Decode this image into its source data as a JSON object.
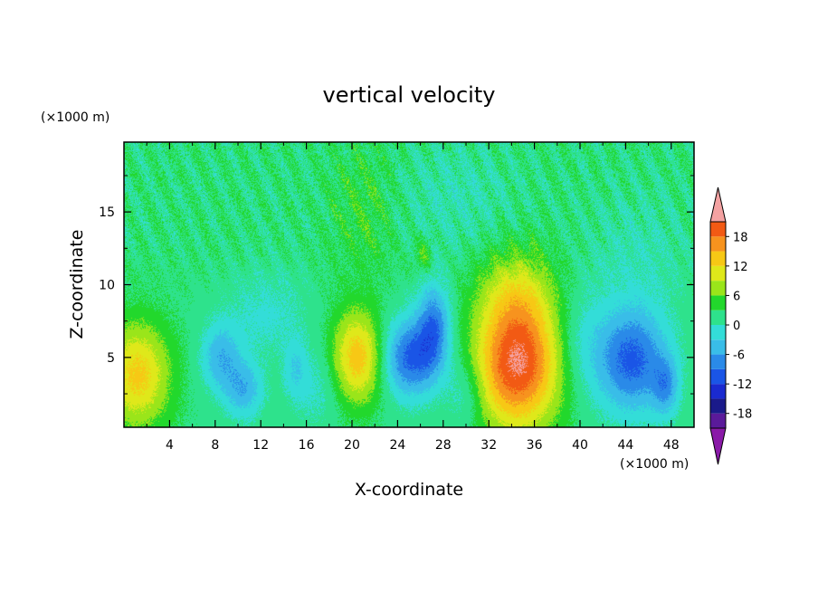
{
  "chart_data": {
    "type": "heatmap",
    "title": "vertical velocity",
    "xlabel": "X-coordinate",
    "ylabel": "Z-coordinate",
    "x_unit": "(×1000 m)",
    "y_unit": "(×1000 m)",
    "xlim": [
      0,
      50
    ],
    "ylim": [
      0.2,
      19.8
    ],
    "x_ticks": [
      4,
      8,
      12,
      16,
      20,
      24,
      28,
      32,
      36,
      40,
      44,
      48
    ],
    "y_ticks": [
      5,
      10,
      15
    ],
    "x_tick_labels": [
      "4",
      "8",
      "12",
      "16",
      "20",
      "24",
      "28",
      "32",
      "36",
      "40",
      "44",
      "48"
    ],
    "y_tick_labels": [
      "5",
      "10",
      "15"
    ],
    "colorbar": {
      "levels": [
        -21,
        -18,
        -15,
        -12,
        -9,
        -6,
        -3,
        0,
        3,
        6,
        9,
        12,
        15,
        18,
        21
      ],
      "tick_values": [
        -18,
        -12,
        -6,
        0,
        6,
        12,
        18
      ],
      "tick_labels": [
        "-18",
        "-12",
        "-6",
        "0",
        "6",
        "12",
        "18"
      ],
      "colors": [
        "#5a1a9a",
        "#1a1a8a",
        "#1a2ad0",
        "#1a55e6",
        "#2a8ae8",
        "#39bde8",
        "#33ddd8",
        "#2ee28c",
        "#22d82c",
        "#9ae51a",
        "#dfe81a",
        "#f7c815",
        "#f7931e",
        "#f25a14",
        "#ee2222",
        "#f4a2a2"
      ],
      "under_color": "#8a1aa8",
      "over_color": "#f4a2a2",
      "extend": "both"
    },
    "features": [
      {
        "x": 1.2,
        "z": 3.8,
        "amp": 11,
        "sx": 2.0,
        "sz": 2.5
      },
      {
        "x": 8.5,
        "z": 5.0,
        "amp": -7,
        "sx": 1.2,
        "sz": 1.6
      },
      {
        "x": 10.5,
        "z": 2.8,
        "amp": -7,
        "sx": 1.2,
        "sz": 1.4
      },
      {
        "x": 15.0,
        "z": 4.2,
        "amp": -4,
        "sx": 0.7,
        "sz": 1.4
      },
      {
        "x": 20.5,
        "z": 5.0,
        "amp": 12,
        "sx": 1.6,
        "sz": 2.2
      },
      {
        "x": 25.2,
        "z": 5.0,
        "amp": -12,
        "sx": 1.8,
        "sz": 1.9
      },
      {
        "x": 27.2,
        "z": 7.3,
        "amp": -9,
        "sx": 1.0,
        "sz": 2.0
      },
      {
        "x": 34.5,
        "z": 4.5,
        "amp": 19,
        "sx": 2.6,
        "sz": 3.1
      },
      {
        "x": 34.5,
        "z": 9.5,
        "amp": 6,
        "sx": 2.3,
        "sz": 2.2
      },
      {
        "x": 44.5,
        "z": 4.8,
        "amp": -12,
        "sx": 2.2,
        "sz": 2.5
      },
      {
        "x": 47.5,
        "z": 3.0,
        "amp": -7,
        "sx": 0.8,
        "sz": 1.4
      },
      {
        "x": 30.0,
        "z": 2.5,
        "amp": -4,
        "sx": 1.2,
        "sz": 1.8
      },
      {
        "x": 21.0,
        "z": 15.0,
        "amp": 2.5,
        "sx": 2.0,
        "sz": 3.5
      },
      {
        "x": 26.3,
        "z": 12.0,
        "amp": 4,
        "sx": 0.5,
        "sz": 0.8
      },
      {
        "x": 29.0,
        "z": 16.0,
        "amp": -2,
        "sx": 3.5,
        "sz": 2.5
      },
      {
        "x": 45.0,
        "z": 12.0,
        "amp": -2,
        "sx": 3.0,
        "sz": 3.0
      },
      {
        "x": 12.5,
        "z": 8.0,
        "amp": -3,
        "sx": 2.5,
        "sz": 2.0
      },
      {
        "x": 40.0,
        "z": 6.0,
        "amp": -3,
        "sx": 1.5,
        "sz": 2.5
      },
      {
        "x": 17.0,
        "z": 3.0,
        "amp": -3,
        "sx": 1.5,
        "sz": 2.0
      }
    ],
    "background": 2,
    "grid": false,
    "legend": "colorbar-right"
  }
}
